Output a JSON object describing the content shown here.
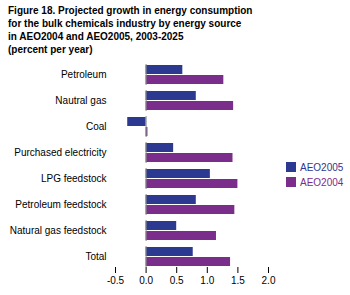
{
  "chart_data": {
    "type": "bar",
    "orientation": "horizontal",
    "title": "Figure 18. Projected growth in energy consumption\nfor the bulk chemicals industry by energy source\nin AEO2004 and AEO2005, 2003-2025\n(percent per year)",
    "categories": [
      "Petroleum",
      "Nautral gas",
      "Coal",
      "Purchased electricity",
      "LPG feedstock",
      "Petroleum feedstock",
      "Natural gas feedstock",
      "Total"
    ],
    "series": [
      {
        "name": "AEO2005",
        "color": "#2b3990",
        "values": [
          0.6,
          0.82,
          -0.3,
          0.45,
          1.05,
          0.82,
          0.5,
          0.77
        ]
      },
      {
        "name": "AEO2004",
        "color": "#7b2d8b",
        "values": [
          1.27,
          1.43,
          0.03,
          1.42,
          1.5,
          1.45,
          1.15,
          1.38
        ]
      }
    ],
    "xlim": [
      -0.5,
      2.0
    ],
    "xticks": [
      -0.5,
      {
        "value": 0.0,
        "label": "0.0"
      },
      0.5,
      {
        "value": 1.0,
        "label": "1.0"
      },
      1.5,
      {
        "value": 2.0,
        "label": "2.0"
      }
    ],
    "legend": "right"
  }
}
